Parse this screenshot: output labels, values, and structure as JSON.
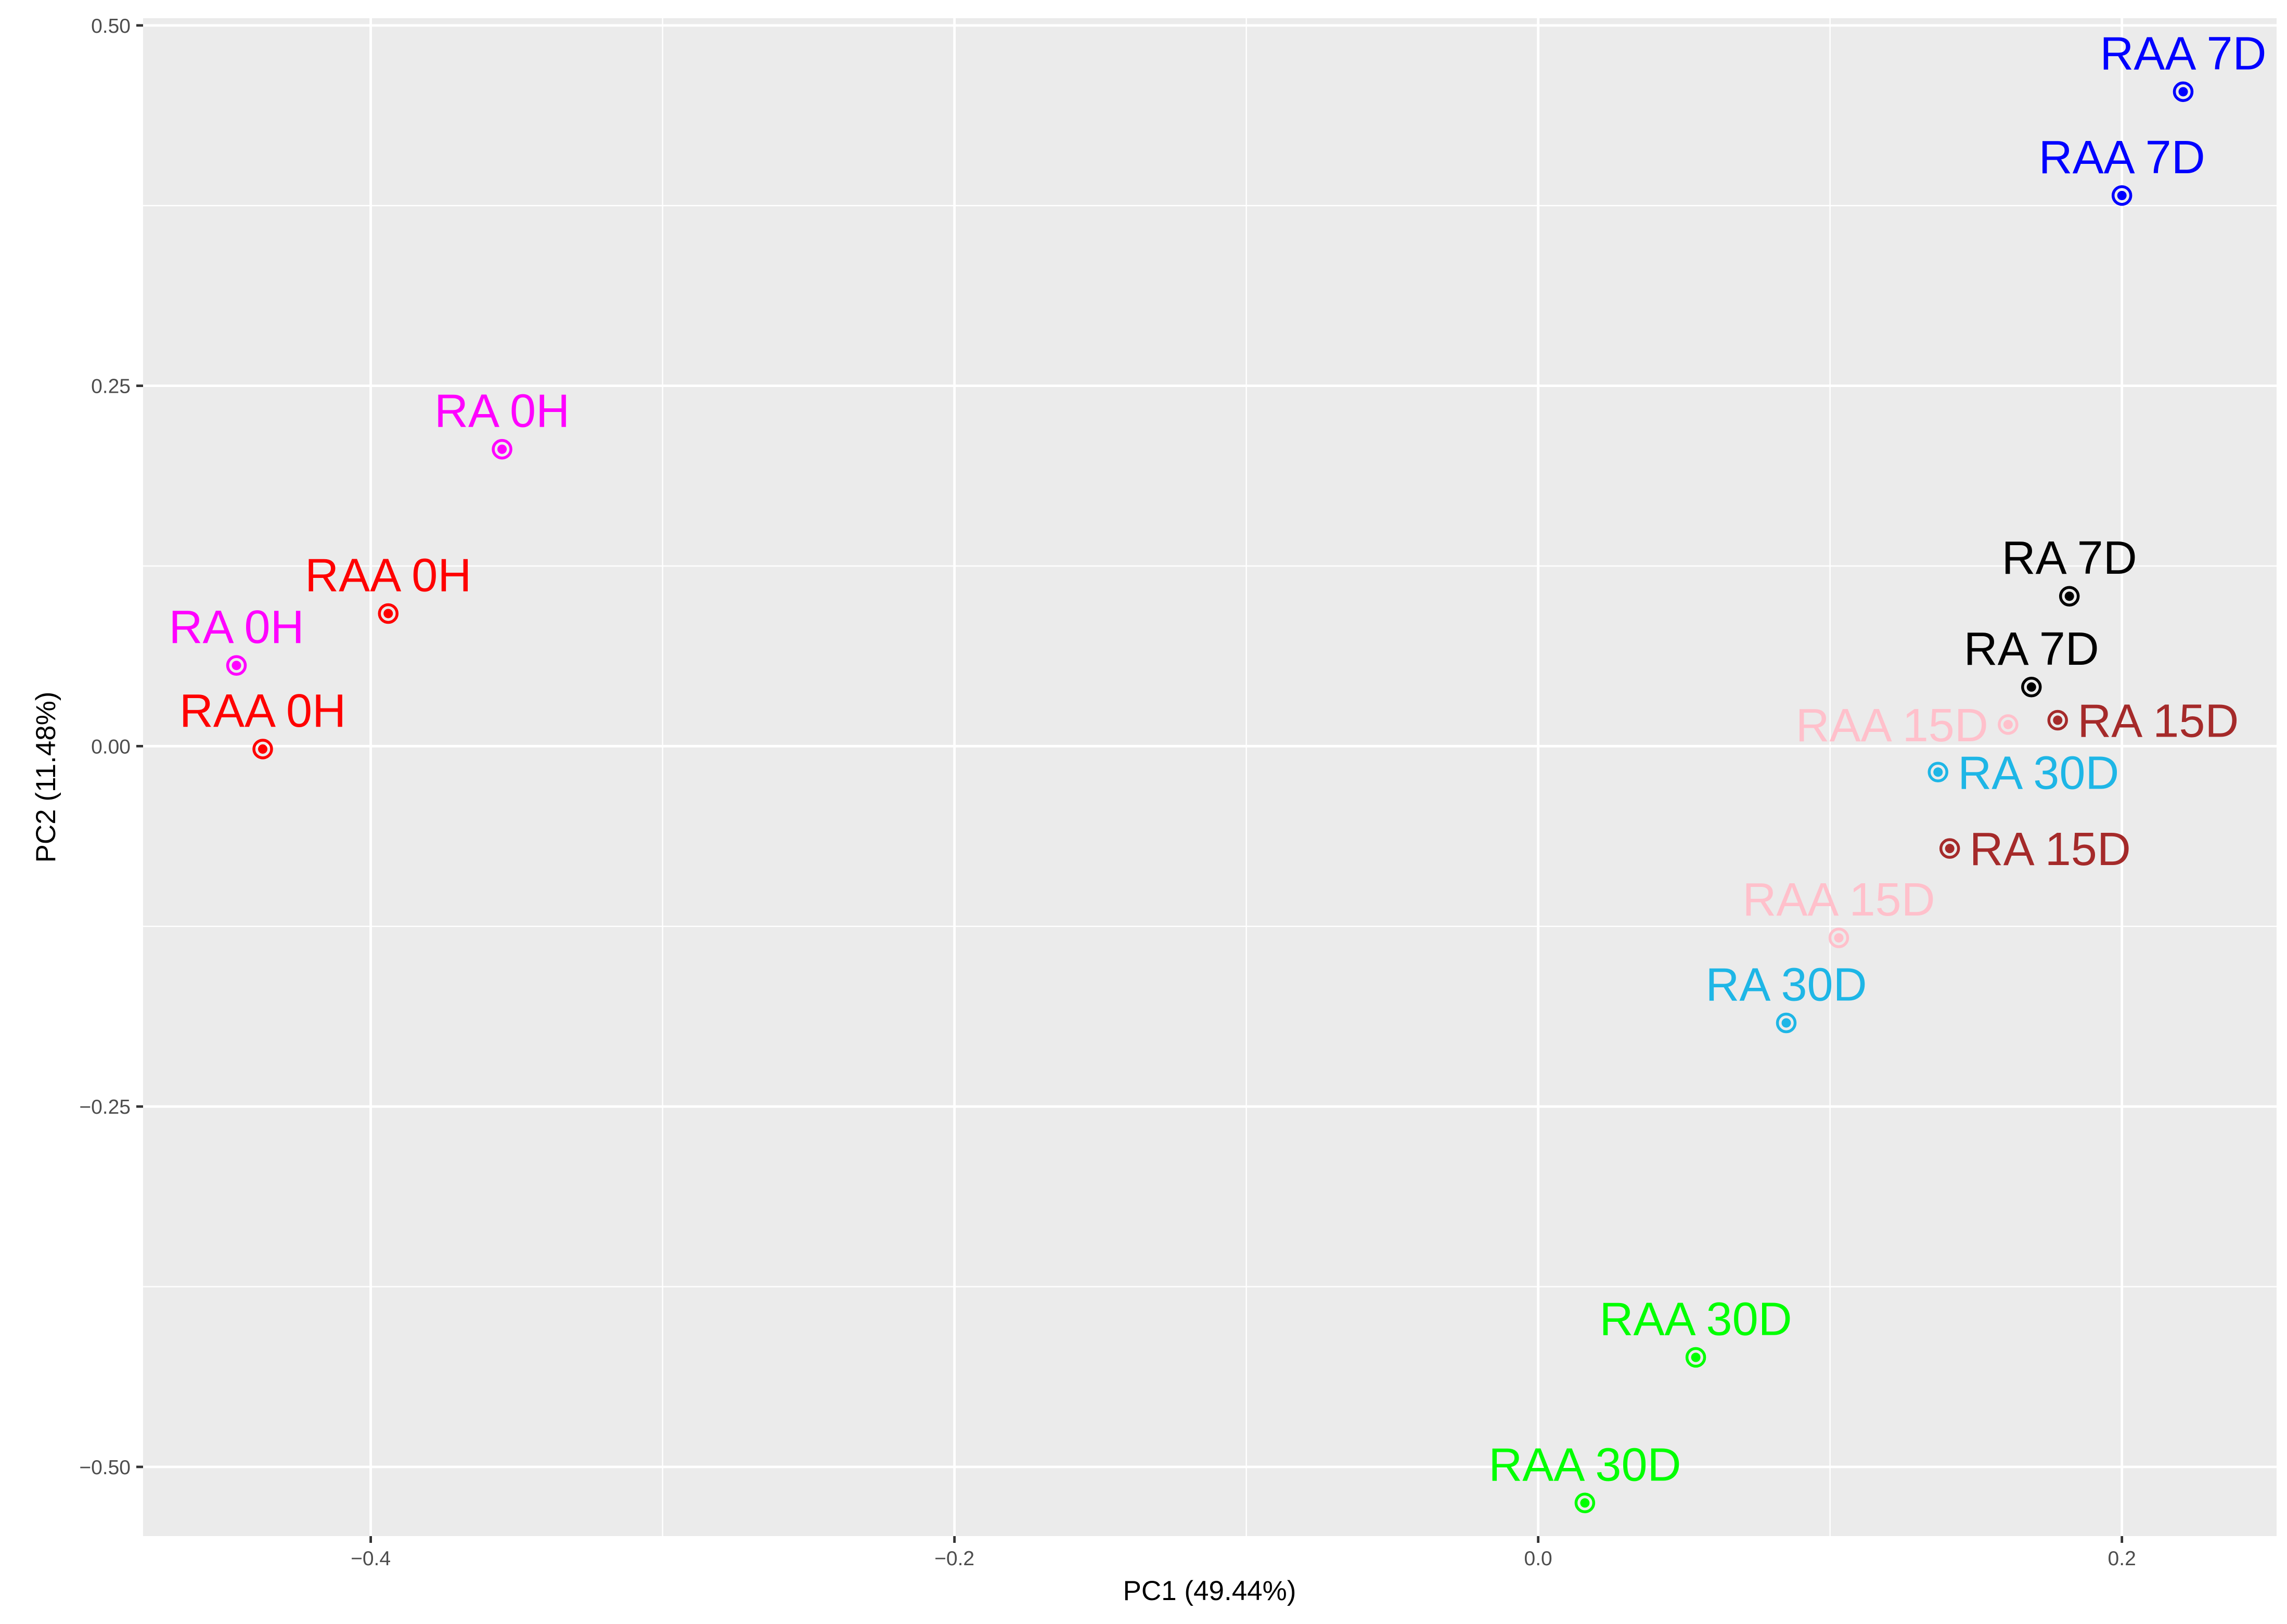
{
  "chart_data": {
    "type": "scatter",
    "title": "",
    "xlabel": "PC1 (49.44%)",
    "ylabel": "PC2 (11.48%)",
    "xlim": [
      -0.478,
      0.253
    ],
    "ylim": [
      -0.548,
      0.505
    ],
    "xticks": [
      {
        "value": -0.4,
        "label": "−0.4"
      },
      {
        "value": -0.2,
        "label": "−0.2"
      },
      {
        "value": 0.0,
        "label": "0.0"
      },
      {
        "value": 0.2,
        "label": "0.2"
      }
    ],
    "yticks": [
      {
        "value": 0.5,
        "label": "0.50"
      },
      {
        "value": 0.25,
        "label": "0.25"
      },
      {
        "value": 0.0,
        "label": "0.00"
      },
      {
        "value": -0.25,
        "label": "−0.25"
      },
      {
        "value": -0.5,
        "label": "−0.50"
      }
    ],
    "grid": true,
    "legend": "none",
    "points": [
      {
        "label": "RA 0H",
        "x": -0.355,
        "y": 0.206,
        "color": "#ff00ff",
        "label_pos": "above"
      },
      {
        "label": "RA 0H",
        "x": -0.446,
        "y": 0.056,
        "color": "#ff00ff",
        "label_pos": "above"
      },
      {
        "label": "RAA 0H",
        "x": -0.394,
        "y": 0.092,
        "color": "#ff0000",
        "label_pos": "above"
      },
      {
        "label": "RAA 0H",
        "x": -0.437,
        "y": -0.002,
        "color": "#ff0000",
        "label_pos": "above"
      },
      {
        "label": "RAA 7D",
        "x": 0.221,
        "y": 0.454,
        "color": "#0000ff",
        "label_pos": "above"
      },
      {
        "label": "RAA 7D",
        "x": 0.2,
        "y": 0.382,
        "color": "#0000ff",
        "label_pos": "above"
      },
      {
        "label": "RA 7D",
        "x": 0.182,
        "y": 0.104,
        "color": "#000000",
        "label_pos": "above"
      },
      {
        "label": "RA 7D",
        "x": 0.169,
        "y": 0.041,
        "color": "#000000",
        "label_pos": "above"
      },
      {
        "label": "RA 15D",
        "x": 0.178,
        "y": 0.018,
        "color": "#a52a2a",
        "label_pos": "right"
      },
      {
        "label": "RA 15D",
        "x": 0.141,
        "y": -0.071,
        "color": "#a52a2a",
        "label_pos": "right"
      },
      {
        "label": "RAA 15D",
        "x": 0.161,
        "y": 0.015,
        "color": "#ffc0cb",
        "label_pos": "left"
      },
      {
        "label": "RAA 15D",
        "x": 0.103,
        "y": -0.133,
        "color": "#ffc0cb",
        "label_pos": "above"
      },
      {
        "label": "RA 30D",
        "x": 0.137,
        "y": -0.018,
        "color": "#1eb6e6",
        "label_pos": "right"
      },
      {
        "label": "RA 30D",
        "x": 0.085,
        "y": -0.192,
        "color": "#1eb6e6",
        "label_pos": "above"
      },
      {
        "label": "RAA 30D",
        "x": 0.054,
        "y": -0.424,
        "color": "#00ff00",
        "label_pos": "above"
      },
      {
        "label": "RAA 30D",
        "x": 0.016,
        "y": -0.525,
        "color": "#00ff00",
        "label_pos": "above"
      }
    ]
  }
}
